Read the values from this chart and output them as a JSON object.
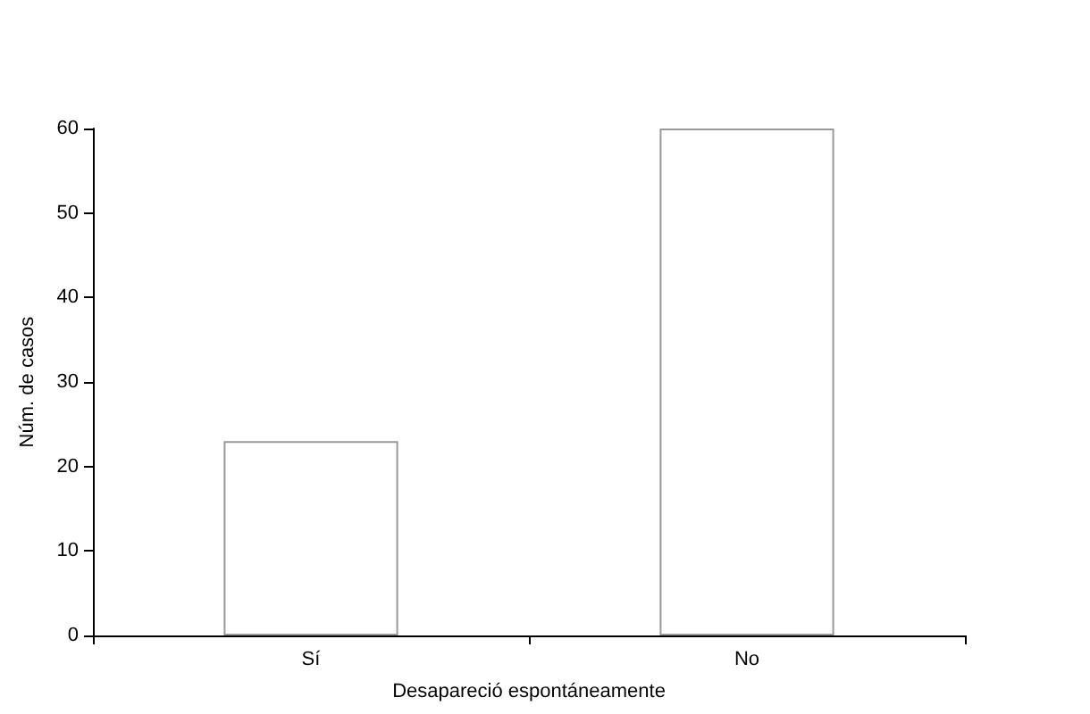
{
  "chart_data": {
    "type": "bar",
    "xlabel": "Desapareció espontáneamente",
    "ylabel": "Núm. de casos",
    "categories": [
      "Sí",
      "No"
    ],
    "values": [
      23,
      60
    ],
    "color": "#ffffff",
    "ylim": [
      0,
      60
    ],
    "yticks": [
      0,
      10,
      20,
      30,
      40,
      50,
      60
    ],
    "grid": false
  }
}
